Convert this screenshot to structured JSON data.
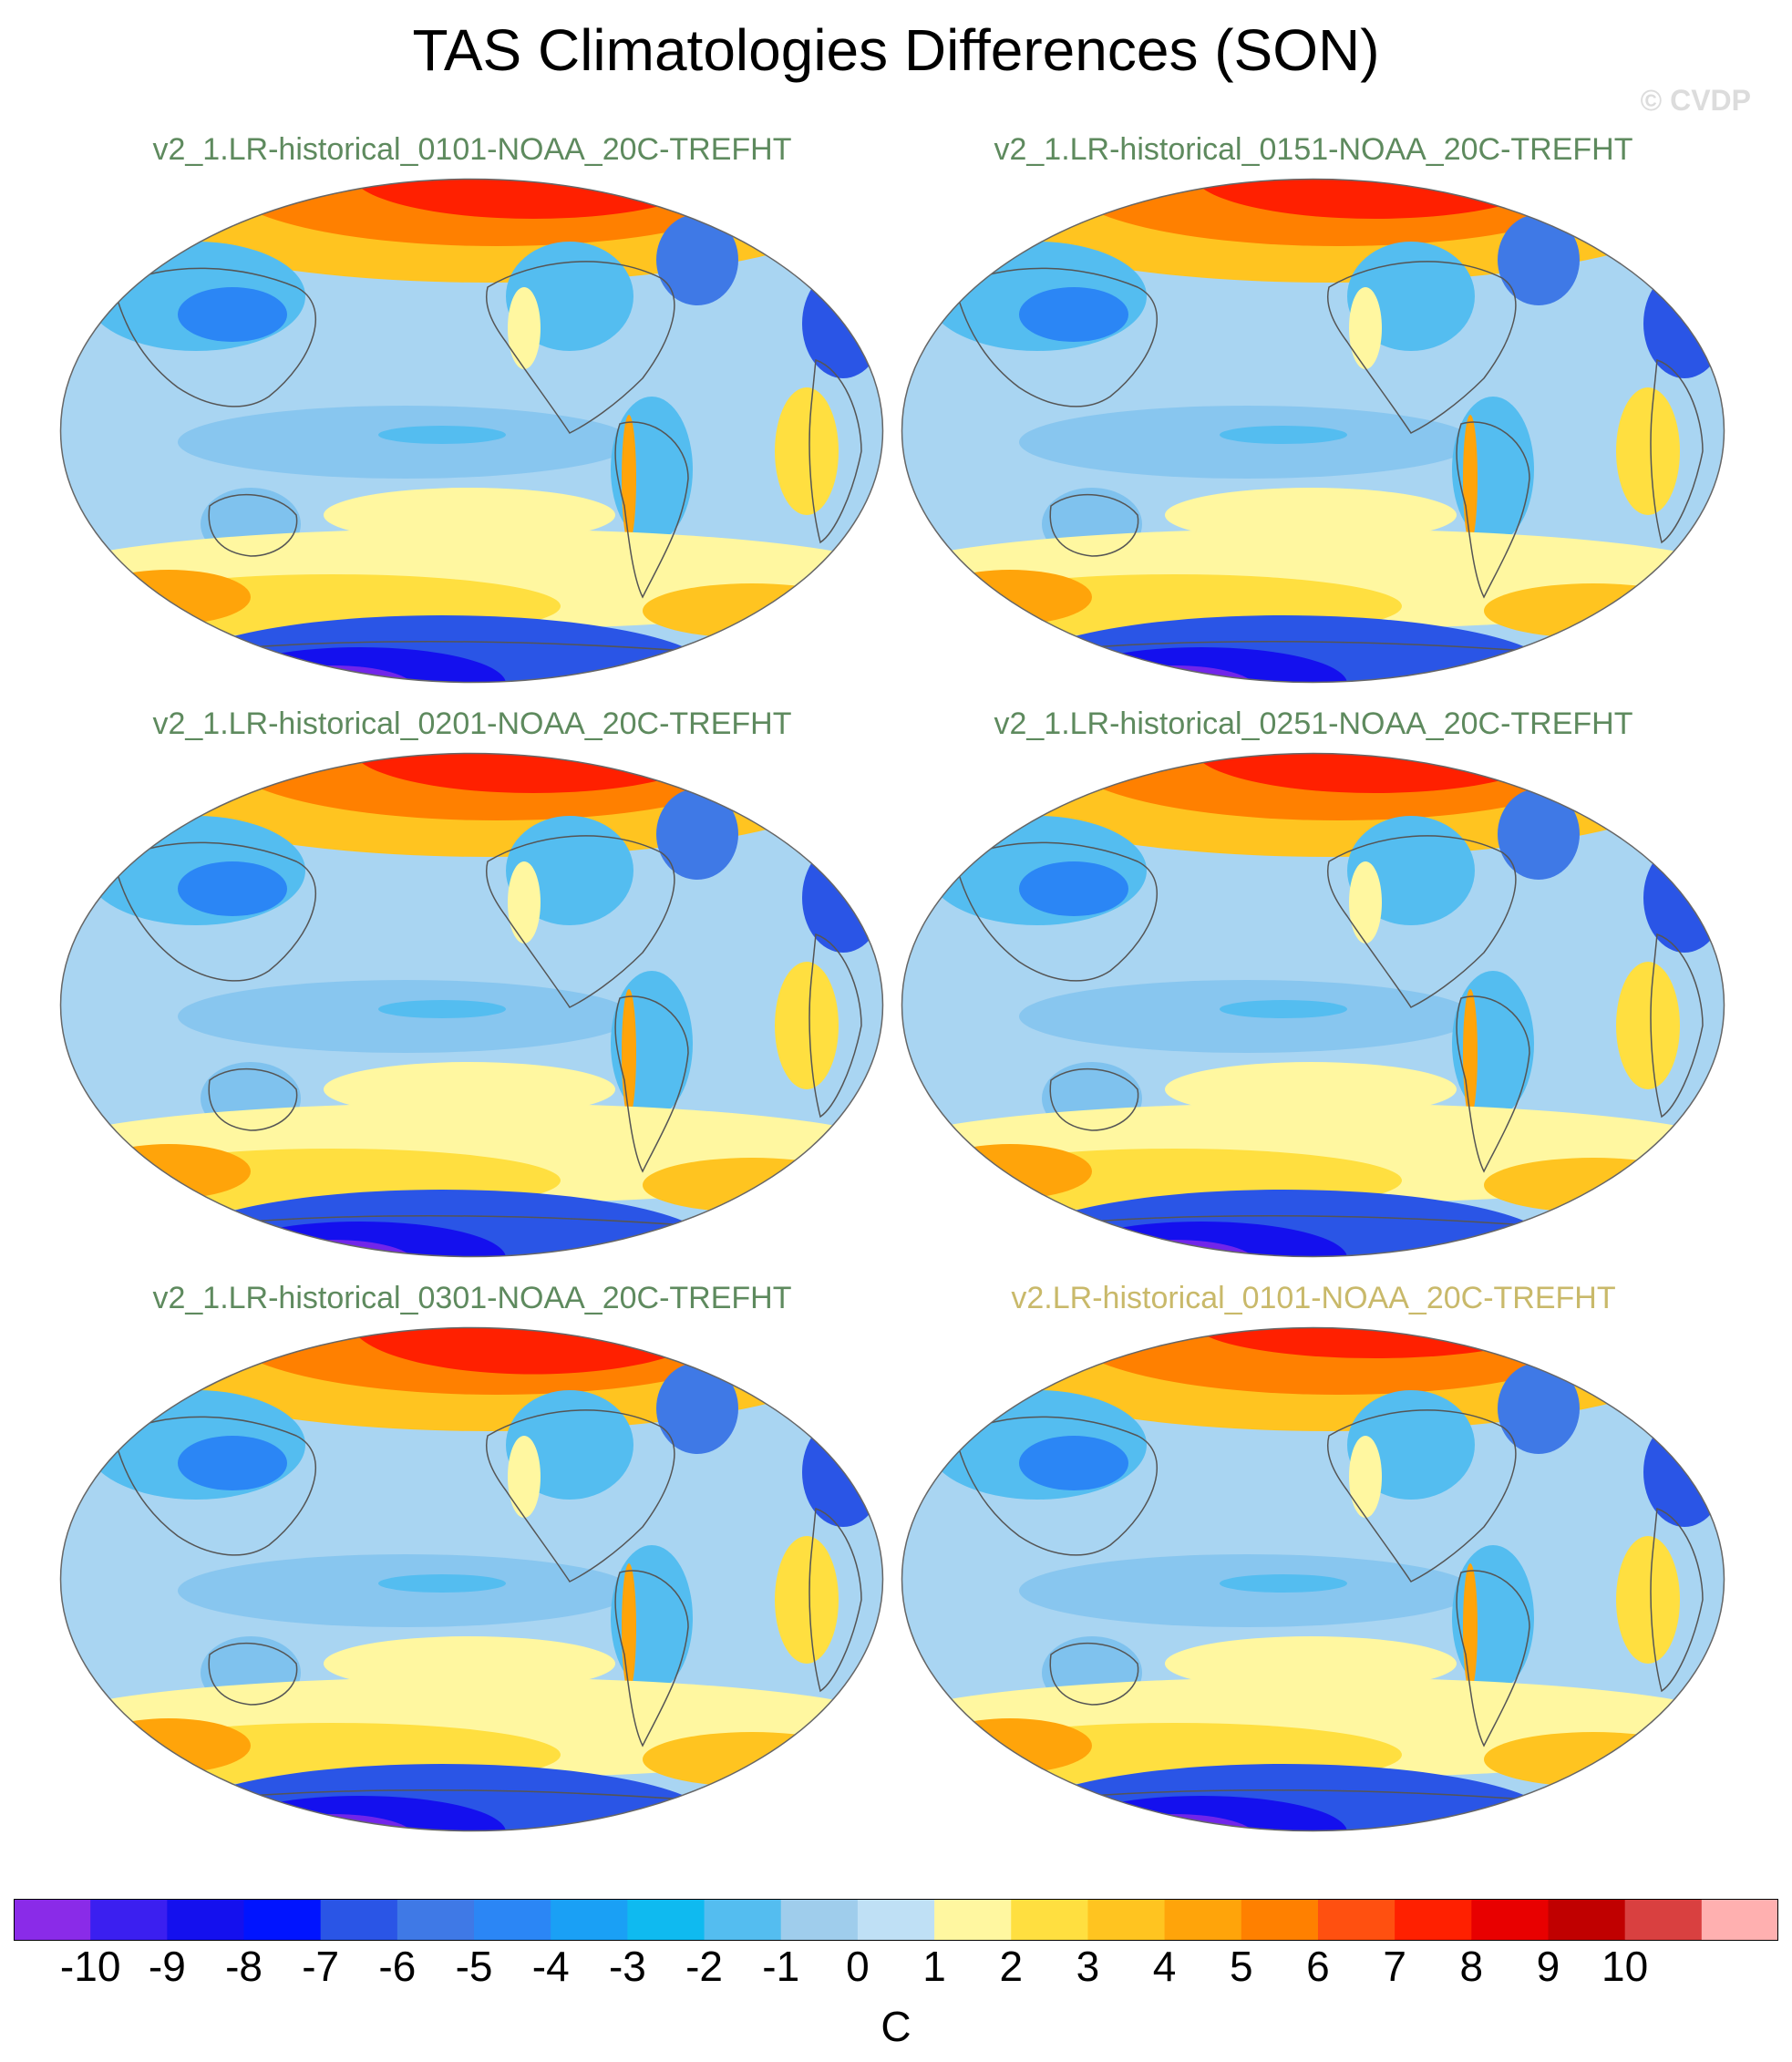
{
  "chart_data": {
    "type": "heatmap",
    "title": "TAS Climatologies Differences (SON)",
    "watermark": "© CVDP",
    "units": "C",
    "projection": "Robinson (Pacific-centered global map)",
    "panels": [
      {
        "label": "v2_1.LR-historical_0101-NOAA_20C-TREFHT",
        "label_color": "#5e8a5e"
      },
      {
        "label": "v2_1.LR-historical_0151-NOAA_20C-TREFHT",
        "label_color": "#5e8a5e"
      },
      {
        "label": "v2_1.LR-historical_0201-NOAA_20C-TREFHT",
        "label_color": "#5e8a5e"
      },
      {
        "label": "v2_1.LR-historical_0251-NOAA_20C-TREFHT",
        "label_color": "#5e8a5e"
      },
      {
        "label": "v2_1.LR-historical_0301-NOAA_20C-TREFHT",
        "label_color": "#5e8a5e"
      },
      {
        "label": "v2.LR-historical_0101-NOAA_20C-TREFHT",
        "label_color": "#c9b96a"
      }
    ],
    "colorbar": {
      "levels": [
        -10,
        -9,
        -8,
        -7,
        -6,
        -5,
        -4,
        -3,
        -2,
        -1,
        0,
        1,
        2,
        3,
        4,
        5,
        6,
        7,
        8,
        9,
        10
      ],
      "tick_labels": [
        "-10",
        "-9",
        "-8",
        "-7",
        "-6",
        "-5",
        "-4",
        "-3",
        "-2",
        "-1",
        "0",
        "1",
        "2",
        "3",
        "4",
        "5",
        "6",
        "7",
        "8",
        "9",
        "10"
      ],
      "colors": [
        "#8a2be8",
        "#3b1ff0",
        "#1410ee",
        "#0014ff",
        "#2a55e6",
        "#3f79e6",
        "#2b86f5",
        "#1aa0f5",
        "#0fbaf0",
        "#54bdf0",
        "#9fcdec",
        "#bfe0f5",
        "#fff7a0",
        "#ffdf40",
        "#ffc420",
        "#ffa40a",
        "#ff8000",
        "#ff5010",
        "#ff2000",
        "#e80000",
        "#c00000",
        "#d94040",
        "#ffb0b0"
      ]
    }
  }
}
